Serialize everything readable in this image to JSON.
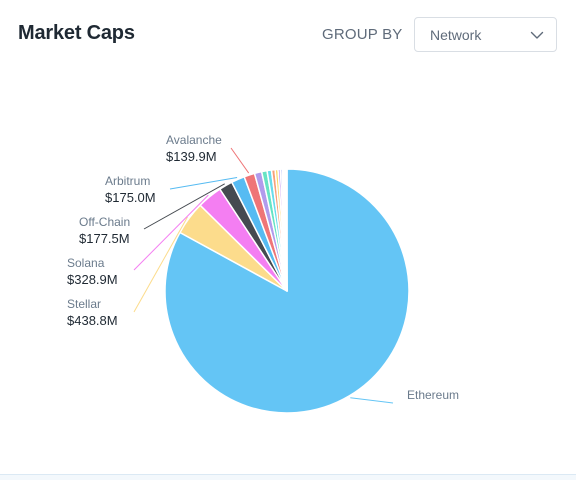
{
  "header": {
    "title": "Market Caps",
    "group_by_label": "GROUP BY",
    "group_by_value": "Network"
  },
  "icons": {
    "select_chevron": "chevron-down-icon"
  },
  "chart_data": {
    "type": "pie",
    "title": "Market Caps",
    "legend": "none",
    "slices": [
      {
        "name": "Ethereum",
        "value": 8200,
        "color": "#64c5f5",
        "label": "Ethereum",
        "value_label": ""
      },
      {
        "name": "Stellar",
        "value": 438.8,
        "color": "#fcdc8c",
        "label": "Stellar",
        "value_label": "$438.8M"
      },
      {
        "name": "Solana",
        "value": 328.9,
        "color": "#f47ef2",
        "label": "Solana",
        "value_label": "$328.9M"
      },
      {
        "name": "Off-Chain",
        "value": 177.5,
        "color": "#454a50",
        "label": "Off-Chain",
        "value_label": "$177.5M"
      },
      {
        "name": "Arbitrum",
        "value": 175.0,
        "color": "#56bbf2",
        "label": "Arbitrum",
        "value_label": "$175.0M"
      },
      {
        "name": "Avalanche",
        "value": 139.9,
        "color": "#ef7577",
        "label": "Avalanche",
        "value_label": "$139.9M"
      },
      {
        "name": "",
        "value": 95,
        "color": "#b19bec",
        "label": "",
        "value_label": ""
      },
      {
        "name": "",
        "value": 70,
        "color": "#66e3c4",
        "label": "",
        "value_label": ""
      },
      {
        "name": "",
        "value": 58,
        "color": "#68dcec",
        "label": "",
        "value_label": ""
      },
      {
        "name": "",
        "value": 47,
        "color": "#f7a07a",
        "label": "",
        "value_label": ""
      },
      {
        "name": "",
        "value": 38,
        "color": "#fbd86a",
        "label": "",
        "value_label": ""
      },
      {
        "name": "",
        "value": 30,
        "color": "#bd8ef0",
        "label": "",
        "value_label": ""
      },
      {
        "name": "",
        "value": 24,
        "color": "#8fa4f5",
        "label": "",
        "value_label": ""
      },
      {
        "name": "",
        "value": 19,
        "color": "#f08fc4",
        "label": "",
        "value_label": ""
      },
      {
        "name": "",
        "value": 15,
        "color": "#9ed3f6",
        "label": "",
        "value_label": ""
      },
      {
        "name": "",
        "value": 12,
        "color": "#bfc7cf",
        "label": "",
        "value_label": ""
      },
      {
        "name": "",
        "value": 9,
        "color": "#7ee0a8",
        "label": "",
        "value_label": ""
      },
      {
        "name": "",
        "value": 7,
        "color": "#e6c3f5",
        "label": "",
        "value_label": ""
      }
    ]
  }
}
